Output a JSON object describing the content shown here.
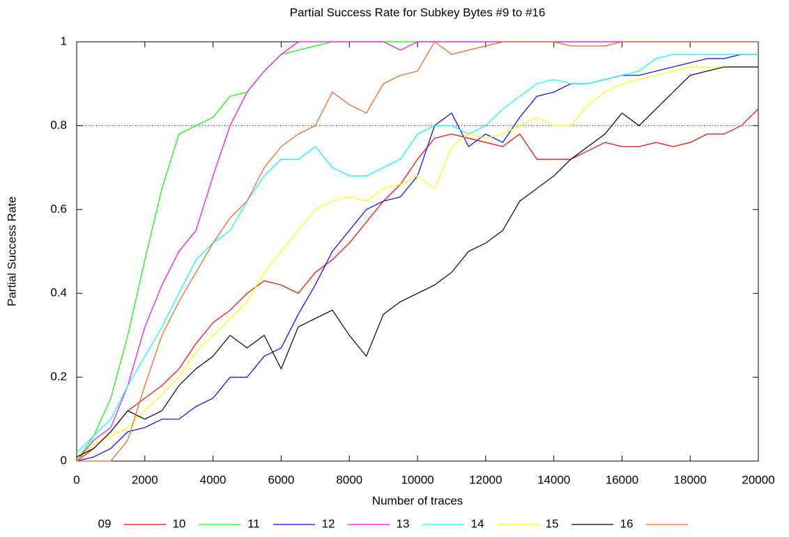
{
  "chart_data": {
    "type": "line",
    "title": "Partial Success Rate for Subkey Bytes #9 to #16",
    "x_label": "Number of traces",
    "y_label": "Partial Success Rate",
    "xlim": [
      0,
      20000
    ],
    "ylim": [
      0,
      1
    ],
    "xticks": [
      0,
      2000,
      4000,
      6000,
      8000,
      10000,
      12000,
      14000,
      16000,
      18000,
      20000
    ],
    "yticks": [
      0,
      0.2,
      0.4,
      0.6,
      0.8,
      1
    ],
    "reference_line": 0.8,
    "legend": "bottom",
    "x": [
      0,
      500,
      1000,
      1500,
      2000,
      2500,
      3000,
      3500,
      4000,
      4500,
      5000,
      5500,
      6000,
      6500,
      7000,
      7500,
      8000,
      8500,
      9000,
      9500,
      10000,
      10500,
      11000,
      11500,
      12000,
      12500,
      13000,
      13500,
      14000,
      14500,
      15000,
      15500,
      16000,
      16500,
      17000,
      17500,
      18000,
      18500,
      19000,
      19500,
      20000
    ],
    "series": [
      {
        "name": "09",
        "color": "#ff0000",
        "values": [
          0,
          0.03,
          0.07,
          0.12,
          0.15,
          0.18,
          0.22,
          0.28,
          0.33,
          0.36,
          0.4,
          0.43,
          0.42,
          0.4,
          0.45,
          0.48,
          0.52,
          0.57,
          0.62,
          0.66,
          0.72,
          0.77,
          0.78,
          0.77,
          0.76,
          0.75,
          0.78,
          0.72,
          0.72,
          0.72,
          0.74,
          0.76,
          0.75,
          0.75,
          0.76,
          0.75,
          0.76,
          0.78,
          0.78,
          0.8,
          0.84
        ]
      },
      {
        "name": "10",
        "color": "#00ff00",
        "values": [
          0,
          0.06,
          0.15,
          0.3,
          0.48,
          0.65,
          0.78,
          0.8,
          0.82,
          0.87,
          0.88,
          0.93,
          0.97,
          0.98,
          0.99,
          1,
          1,
          1,
          1,
          1,
          1,
          1,
          1,
          1,
          1,
          1,
          1,
          1,
          1,
          1,
          1,
          1,
          1,
          1,
          1,
          1,
          1,
          1,
          1,
          1,
          1
        ]
      },
      {
        "name": "11",
        "color": "#0000ff",
        "values": [
          0,
          0.01,
          0.03,
          0.07,
          0.08,
          0.1,
          0.1,
          0.13,
          0.15,
          0.2,
          0.2,
          0.25,
          0.27,
          0.35,
          0.42,
          0.5,
          0.55,
          0.6,
          0.62,
          0.63,
          0.68,
          0.8,
          0.83,
          0.75,
          0.78,
          0.76,
          0.82,
          0.87,
          0.88,
          0.9,
          0.9,
          0.91,
          0.92,
          0.92,
          0.93,
          0.94,
          0.95,
          0.96,
          0.96,
          0.97,
          0.97
        ]
      },
      {
        "name": "12",
        "color": "#ff00ff",
        "values": [
          0,
          0.05,
          0.08,
          0.18,
          0.32,
          0.42,
          0.5,
          0.55,
          0.68,
          0.8,
          0.88,
          0.93,
          0.97,
          1,
          1,
          1,
          1,
          1,
          1,
          0.98,
          1,
          1,
          1,
          1,
          1,
          1,
          1,
          1,
          1,
          1,
          1,
          1,
          1,
          1,
          1,
          1,
          1,
          1,
          1,
          1,
          1
        ]
      },
      {
        "name": "13",
        "color": "#00ffff",
        "values": [
          0.02,
          0.06,
          0.1,
          0.18,
          0.25,
          0.32,
          0.4,
          0.48,
          0.52,
          0.55,
          0.62,
          0.68,
          0.72,
          0.72,
          0.75,
          0.7,
          0.68,
          0.68,
          0.7,
          0.72,
          0.78,
          0.8,
          0.8,
          0.78,
          0.8,
          0.84,
          0.87,
          0.9,
          0.91,
          0.9,
          0.9,
          0.91,
          0.92,
          0.93,
          0.96,
          0.97,
          0.97,
          0.97,
          0.97,
          0.97,
          0.97
        ]
      },
      {
        "name": "14",
        "color": "#ffff00",
        "values": [
          0,
          0.04,
          0.06,
          0.08,
          0.12,
          0.16,
          0.2,
          0.26,
          0.3,
          0.34,
          0.38,
          0.45,
          0.5,
          0.55,
          0.6,
          0.62,
          0.63,
          0.62,
          0.65,
          0.66,
          0.68,
          0.65,
          0.75,
          0.78,
          0.77,
          0.78,
          0.8,
          0.82,
          0.8,
          0.8,
          0.85,
          0.88,
          0.9,
          0.91,
          0.92,
          0.93,
          0.94,
          0.94,
          0.94,
          0.94,
          0.94
        ]
      },
      {
        "name": "15",
        "color": "#000000",
        "values": [
          0.01,
          0.03,
          0.07,
          0.12,
          0.1,
          0.12,
          0.18,
          0.22,
          0.25,
          0.3,
          0.27,
          0.3,
          0.22,
          0.32,
          0.34,
          0.36,
          0.3,
          0.25,
          0.35,
          0.38,
          0.4,
          0.42,
          0.45,
          0.5,
          0.52,
          0.55,
          0.62,
          0.65,
          0.68,
          0.72,
          0.75,
          0.78,
          0.83,
          0.8,
          0.84,
          0.88,
          0.92,
          0.93,
          0.94,
          0.94,
          0.94
        ]
      },
      {
        "name": "16",
        "color": "#f06020",
        "values": [
          0,
          0,
          0,
          0.05,
          0.18,
          0.3,
          0.38,
          0.45,
          0.52,
          0.58,
          0.62,
          0.7,
          0.75,
          0.78,
          0.8,
          0.88,
          0.85,
          0.83,
          0.9,
          0.92,
          0.93,
          1,
          0.97,
          0.98,
          0.99,
          1,
          1,
          1,
          1,
          0.99,
          0.99,
          0.99,
          1,
          1,
          1,
          1,
          1,
          1,
          1,
          1,
          1
        ]
      }
    ]
  }
}
